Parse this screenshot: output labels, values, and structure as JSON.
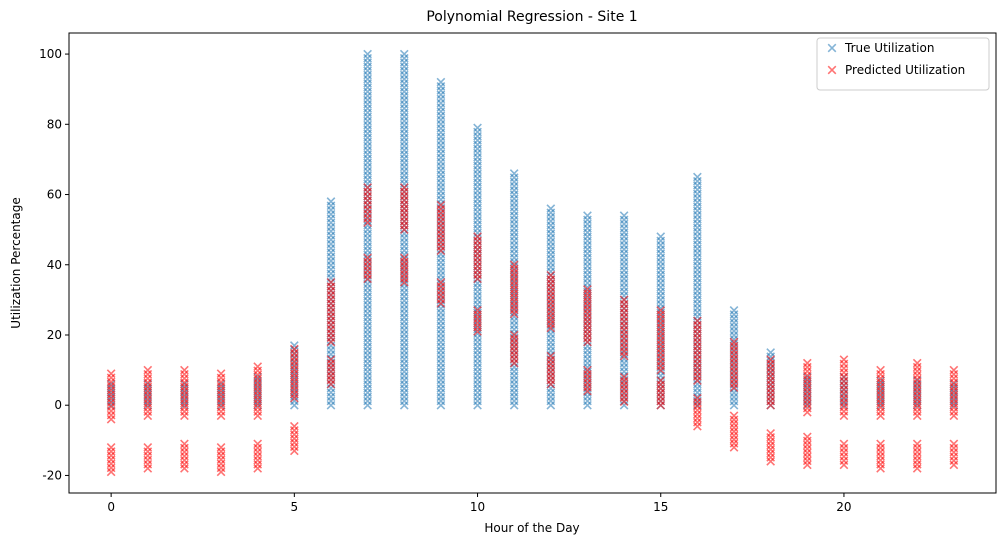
{
  "chart_data": {
    "type": "scatter",
    "title": "Polynomial Regression - Site 1",
    "xlabel": "Hour of the Day",
    "ylabel": "Utilization Percentage",
    "xlim": [
      -1.15,
      24.15
    ],
    "ylim": [
      -25,
      106
    ],
    "xticks": [
      0,
      5,
      10,
      15,
      20
    ],
    "yticks": [
      -20,
      0,
      20,
      40,
      60,
      80,
      100
    ],
    "grid": false,
    "legend_position": "top-right",
    "marker": "x",
    "series": [
      {
        "name": "True Utilization",
        "color": "#1f77b4",
        "alpha": 0.55,
        "ranges": [
          {
            "x": 0,
            "ymin": 0,
            "ymax": 6
          },
          {
            "x": 1,
            "ymin": 0,
            "ymax": 6
          },
          {
            "x": 2,
            "ymin": 0,
            "ymax": 6
          },
          {
            "x": 3,
            "ymin": 0,
            "ymax": 6
          },
          {
            "x": 4,
            "ymin": 0,
            "ymax": 8
          },
          {
            "x": 5,
            "ymin": 0,
            "ymax": 17
          },
          {
            "x": 6,
            "ymin": 0,
            "ymax": 58
          },
          {
            "x": 7,
            "ymin": 0,
            "ymax": 100
          },
          {
            "x": 8,
            "ymin": 0,
            "ymax": 100
          },
          {
            "x": 9,
            "ymin": 0,
            "ymax": 92
          },
          {
            "x": 10,
            "ymin": 0,
            "ymax": 79
          },
          {
            "x": 11,
            "ymin": 0,
            "ymax": 66
          },
          {
            "x": 12,
            "ymin": 0,
            "ymax": 56
          },
          {
            "x": 13,
            "ymin": 0,
            "ymax": 54
          },
          {
            "x": 14,
            "ymin": 0,
            "ymax": 54
          },
          {
            "x": 15,
            "ymin": 0,
            "ymax": 48
          },
          {
            "x": 16,
            "ymin": 0,
            "ymax": 65
          },
          {
            "x": 17,
            "ymin": 0,
            "ymax": 27
          },
          {
            "x": 18,
            "ymin": 0,
            "ymax": 15
          },
          {
            "x": 19,
            "ymin": 0,
            "ymax": 8
          },
          {
            "x": 20,
            "ymin": 0,
            "ymax": 8
          },
          {
            "x": 21,
            "ymin": 0,
            "ymax": 7
          },
          {
            "x": 22,
            "ymin": 0,
            "ymax": 7
          },
          {
            "x": 23,
            "ymin": 0,
            "ymax": 6
          }
        ]
      },
      {
        "name": "Predicted Utilization",
        "color": "#ff0000",
        "alpha": 0.55,
        "ranges": [
          {
            "x": 0,
            "ymin": -4,
            "ymax": 9
          },
          {
            "x": 0,
            "ymin": -19,
            "ymax": -12
          },
          {
            "x": 1,
            "ymin": -3,
            "ymax": 10
          },
          {
            "x": 1,
            "ymin": -18,
            "ymax": -12
          },
          {
            "x": 2,
            "ymin": -3,
            "ymax": 10
          },
          {
            "x": 2,
            "ymin": -18,
            "ymax": -11
          },
          {
            "x": 3,
            "ymin": -3,
            "ymax": 9
          },
          {
            "x": 3,
            "ymin": -19,
            "ymax": -12
          },
          {
            "x": 4,
            "ymin": -3,
            "ymax": 11
          },
          {
            "x": 4,
            "ymin": -18,
            "ymax": -11
          },
          {
            "x": 5,
            "ymin": 2,
            "ymax": 16
          },
          {
            "x": 5,
            "ymin": -13,
            "ymax": -6
          },
          {
            "x": 6,
            "ymin": 18,
            "ymax": 35
          },
          {
            "x": 6,
            "ymin": 6,
            "ymax": 13
          },
          {
            "x": 7,
            "ymin": 52,
            "ymax": 62
          },
          {
            "x": 7,
            "ymin": 36,
            "ymax": 42
          },
          {
            "x": 8,
            "ymin": 50,
            "ymax": 62
          },
          {
            "x": 8,
            "ymin": 35,
            "ymax": 42
          },
          {
            "x": 9,
            "ymin": 44,
            "ymax": 57
          },
          {
            "x": 9,
            "ymin": 29,
            "ymax": 35
          },
          {
            "x": 10,
            "ymin": 36,
            "ymax": 48
          },
          {
            "x": 10,
            "ymin": 21,
            "ymax": 27
          },
          {
            "x": 11,
            "ymin": 26,
            "ymax": 40
          },
          {
            "x": 11,
            "ymin": 12,
            "ymax": 20
          },
          {
            "x": 12,
            "ymin": 22,
            "ymax": 37
          },
          {
            "x": 12,
            "ymin": 6,
            "ymax": 14
          },
          {
            "x": 13,
            "ymin": 18,
            "ymax": 33
          },
          {
            "x": 13,
            "ymin": 4,
            "ymax": 10
          },
          {
            "x": 14,
            "ymin": 14,
            "ymax": 30
          },
          {
            "x": 14,
            "ymin": 1,
            "ymax": 8
          },
          {
            "x": 15,
            "ymin": 10,
            "ymax": 27
          },
          {
            "x": 15,
            "ymin": 0,
            "ymax": 7
          },
          {
            "x": 16,
            "ymin": 7,
            "ymax": 24
          },
          {
            "x": 16,
            "ymin": -6,
            "ymax": 2
          },
          {
            "x": 17,
            "ymin": 5,
            "ymax": 18
          },
          {
            "x": 17,
            "ymin": -12,
            "ymax": -3
          },
          {
            "x": 18,
            "ymin": 0,
            "ymax": 13
          },
          {
            "x": 18,
            "ymin": -16,
            "ymax": -8
          },
          {
            "x": 19,
            "ymin": -2,
            "ymax": 12
          },
          {
            "x": 19,
            "ymin": -17,
            "ymax": -9
          },
          {
            "x": 20,
            "ymin": -3,
            "ymax": 13
          },
          {
            "x": 20,
            "ymin": -17,
            "ymax": -11
          },
          {
            "x": 21,
            "ymin": -3,
            "ymax": 10
          },
          {
            "x": 21,
            "ymin": -18,
            "ymax": -11
          },
          {
            "x": 22,
            "ymin": -3,
            "ymax": 12
          },
          {
            "x": 22,
            "ymin": -18,
            "ymax": -11
          },
          {
            "x": 23,
            "ymin": -3,
            "ymax": 10
          },
          {
            "x": 23,
            "ymin": -17,
            "ymax": -11
          }
        ]
      }
    ]
  }
}
